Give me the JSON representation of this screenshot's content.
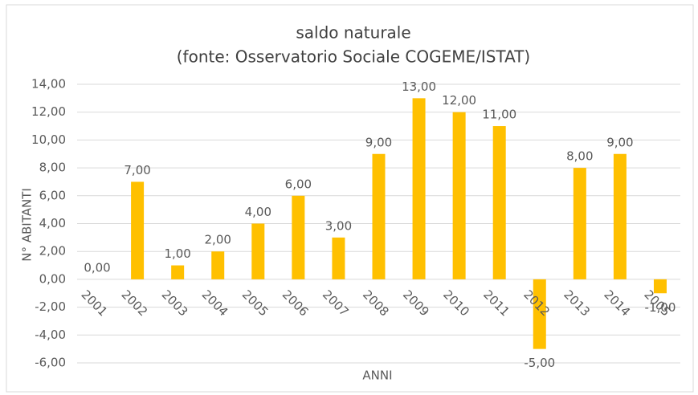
{
  "chart_data": {
    "type": "bar",
    "title": "saldo naturale",
    "subtitle": "(fonte: Osservatorio Sociale COGEME/ISTAT)",
    "x_label": "ANNI",
    "y_label": "N° ABITANTI",
    "categories": [
      "2001",
      "2002",
      "2003",
      "2004",
      "2005",
      "2006",
      "2007",
      "2008",
      "2009",
      "2010",
      "2011",
      "2012",
      "2013",
      "2014",
      "2005"
    ],
    "values": [
      0,
      7,
      1,
      2,
      4,
      6,
      3,
      9,
      13,
      12,
      11,
      -5,
      8,
      9,
      -1
    ],
    "value_labels": [
      "0,00",
      "7,00",
      "1,00",
      "2,00",
      "4,00",
      "6,00",
      "3,00",
      "9,00",
      "13,00",
      "12,00",
      "11,00",
      "-5,00",
      "8,00",
      "9,00",
      "-1,00"
    ],
    "color": "#ffc000",
    "ylim": [
      -6,
      14
    ],
    "yticks": [
      {
        "value": -6,
        "label": "-6,00"
      },
      {
        "value": -4,
        "label": "-4,00"
      },
      {
        "value": -2,
        "label": "-2,00"
      },
      {
        "value": 0,
        "label": "0,00"
      },
      {
        "value": 2,
        "label": "2,00"
      },
      {
        "value": 4,
        "label": "4,00"
      },
      {
        "value": 6,
        "label": "6,00"
      },
      {
        "value": 8,
        "label": "8,00"
      },
      {
        "value": 10,
        "label": "10,00"
      },
      {
        "value": 12,
        "label": "12,00"
      },
      {
        "value": 14,
        "label": "14,00"
      }
    ],
    "grid": true
  }
}
